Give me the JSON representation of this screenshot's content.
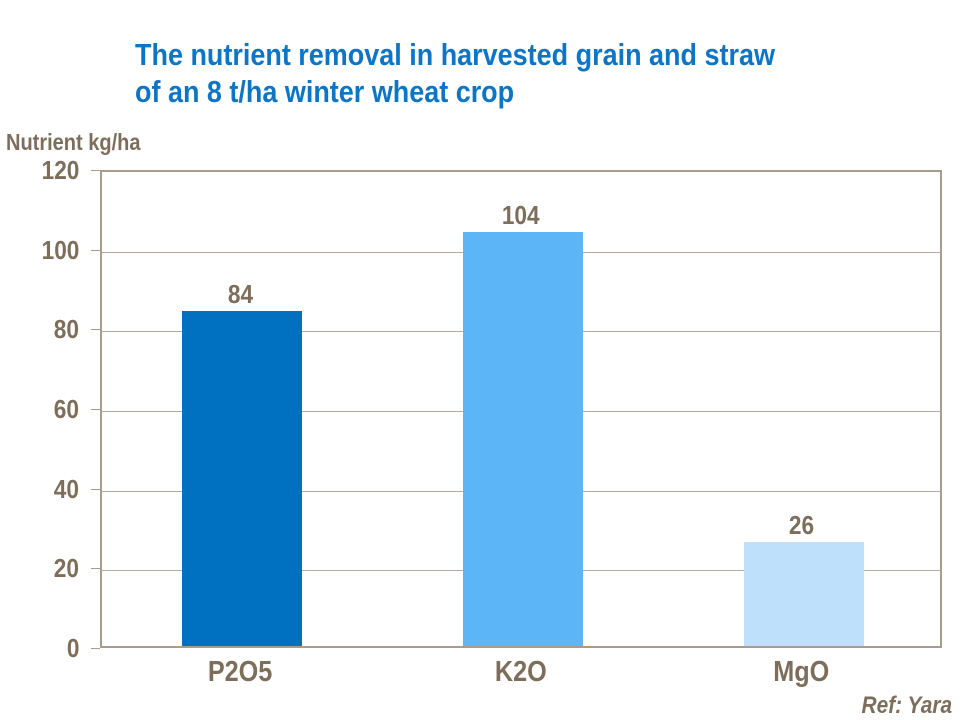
{
  "slide": {
    "title_line1": "The nutrient removal in harvested grain and straw",
    "title_line2": "of an 8 t/ha winter wheat crop",
    "y_axis_title": "Nutrient kg/ha",
    "reference": "Ref: Yara"
  },
  "colors": {
    "title_blue": "#0e75c5",
    "axis_text": "#7d6e5b",
    "gridline": "#b6ab9d",
    "plot_border": "#a79c8d"
  },
  "chart_data": {
    "type": "bar",
    "title": "The nutrient removal in harvested grain and straw of an 8 t/ha winter wheat crop",
    "xlabel": "",
    "ylabel": "Nutrient kg/ha",
    "categories": [
      "P2O5",
      "K2O",
      "MgO"
    ],
    "values": [
      84,
      104,
      26
    ],
    "value_labels": [
      "84",
      "104",
      "26"
    ],
    "bar_colors": [
      "#0070c0",
      "#5bb5f7",
      "#bfe0fb"
    ],
    "ylim": [
      0,
      120
    ],
    "yticks": [
      0,
      20,
      40,
      60,
      80,
      100,
      120
    ],
    "grid": true,
    "legend_position": "none",
    "annotation": "Ref: Yara"
  }
}
